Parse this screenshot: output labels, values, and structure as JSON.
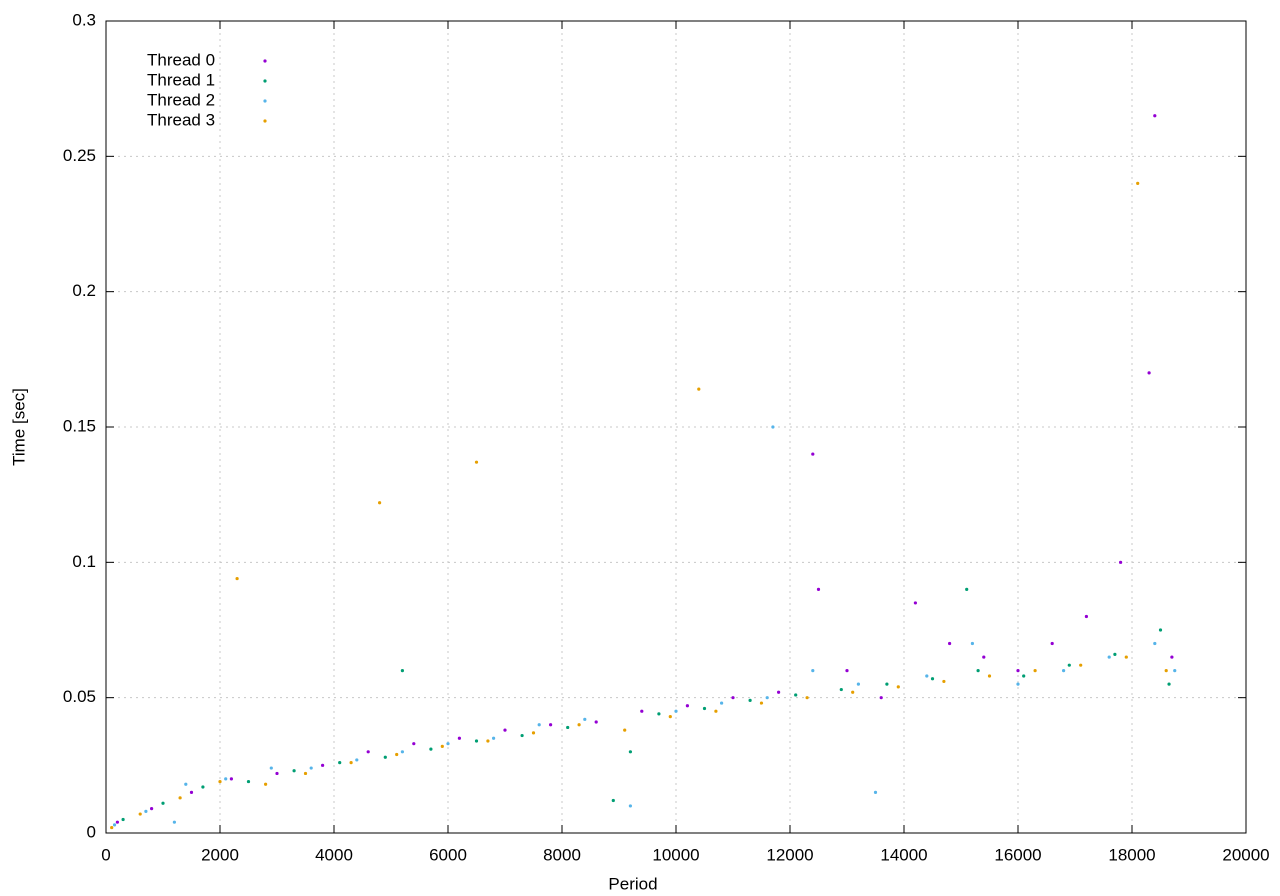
{
  "chart_data": {
    "type": "scatter",
    "xlabel": "Period",
    "ylabel": "Time [sec]",
    "xlim": [
      0,
      20000
    ],
    "xticks": [
      0,
      2000,
      4000,
      6000,
      8000,
      10000,
      12000,
      14000,
      16000,
      18000,
      20000
    ],
    "ylim": [
      0,
      0.3
    ],
    "yticks": [
      0,
      0.05,
      0.1,
      0.15,
      0.2,
      0.25,
      0.3
    ],
    "grid": true,
    "legend": "upper-left",
    "series": [
      {
        "name": "Thread 0",
        "color": "#9400d3",
        "x": [
          200,
          800,
          1500,
          2200,
          3000,
          3800,
          4600,
          5400,
          6200,
          7000,
          7800,
          8600,
          9400,
          10200,
          11000,
          11800,
          12400,
          13000,
          13600,
          14200,
          14800,
          15400,
          16000,
          16600,
          17200,
          17800,
          18300,
          18700,
          12500,
          18400
        ],
        "values": [
          0.004,
          0.009,
          0.015,
          0.02,
          0.022,
          0.025,
          0.03,
          0.033,
          0.035,
          0.038,
          0.04,
          0.041,
          0.045,
          0.047,
          0.05,
          0.052,
          0.14,
          0.06,
          0.05,
          0.085,
          0.07,
          0.065,
          0.06,
          0.07,
          0.08,
          0.1,
          0.17,
          0.065,
          0.09,
          0.265
        ]
      },
      {
        "name": "Thread 1",
        "color": "#009e73",
        "x": [
          300,
          1000,
          1700,
          2500,
          3300,
          4100,
          4900,
          5700,
          6500,
          7300,
          8100,
          8900,
          9700,
          10500,
          11300,
          12100,
          12900,
          13700,
          14500,
          15300,
          16100,
          16900,
          17700,
          18500,
          18650,
          9200,
          5200,
          15100
        ],
        "values": [
          0.005,
          0.011,
          0.017,
          0.019,
          0.023,
          0.026,
          0.028,
          0.031,
          0.034,
          0.036,
          0.039,
          0.012,
          0.044,
          0.046,
          0.049,
          0.051,
          0.053,
          0.055,
          0.057,
          0.06,
          0.058,
          0.062,
          0.066,
          0.075,
          0.055,
          0.03,
          0.06,
          0.09
        ]
      },
      {
        "name": "Thread 2",
        "color": "#56b4e9",
        "x": [
          150,
          700,
          1400,
          2100,
          2900,
          3600,
          4400,
          5200,
          6000,
          6800,
          7600,
          8400,
          9200,
          10000,
          10800,
          11600,
          12400,
          13200,
          13500,
          14400,
          15200,
          16000,
          16800,
          17600,
          18400,
          18750,
          1200,
          11700
        ],
        "values": [
          0.003,
          0.008,
          0.018,
          0.02,
          0.024,
          0.024,
          0.027,
          0.03,
          0.033,
          0.035,
          0.04,
          0.042,
          0.01,
          0.045,
          0.048,
          0.05,
          0.06,
          0.055,
          0.015,
          0.058,
          0.07,
          0.055,
          0.06,
          0.065,
          0.07,
          0.06,
          0.004,
          0.15
        ]
      },
      {
        "name": "Thread 3",
        "color": "#e69f00",
        "x": [
          100,
          600,
          1300,
          2000,
          2800,
          3500,
          4300,
          5100,
          5900,
          6700,
          7500,
          8300,
          9100,
          9900,
          10700,
          11500,
          12300,
          13100,
          13900,
          14700,
          15500,
          16300,
          17100,
          17900,
          18100,
          18600,
          4800,
          6500,
          10400,
          2300
        ],
        "values": [
          0.002,
          0.007,
          0.013,
          0.019,
          0.018,
          0.022,
          0.026,
          0.029,
          0.032,
          0.034,
          0.037,
          0.04,
          0.038,
          0.043,
          0.045,
          0.048,
          0.05,
          0.052,
          0.054,
          0.056,
          0.058,
          0.06,
          0.062,
          0.065,
          0.24,
          0.06,
          0.122,
          0.137,
          0.164,
          0.094
        ]
      }
    ]
  }
}
